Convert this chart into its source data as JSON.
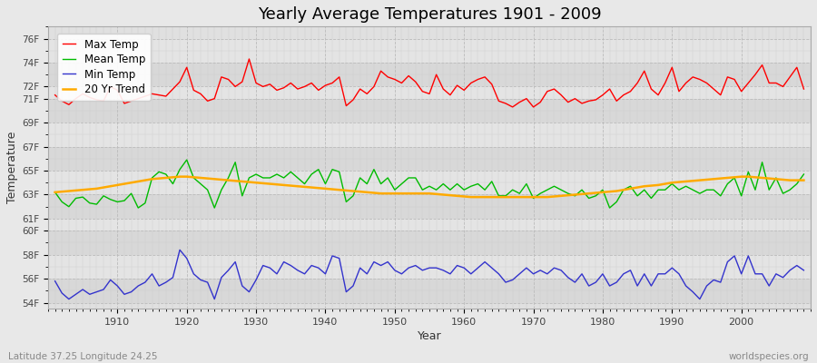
{
  "title": "Yearly Average Temperatures 1901 - 2009",
  "xlabel": "Year",
  "ylabel": "Temperature",
  "bottom_left": "Latitude 37.25 Longitude 24.25",
  "bottom_right": "worldspecies.org",
  "years_start": 1901,
  "years_end": 2009,
  "ylim": [
    53.5,
    77.0
  ],
  "xlim": [
    1900,
    2010
  ],
  "ytick_positions": [
    54,
    56,
    58,
    60,
    61,
    63,
    65,
    67,
    69,
    71,
    72,
    74,
    76
  ],
  "ytick_labels": [
    "54F",
    "56F",
    "58F",
    "60F",
    "61F",
    "63F",
    "65F",
    "67F",
    "69F",
    "71F",
    "72F",
    "74F",
    "76F"
  ],
  "xtick_positions": [
    1910,
    1920,
    1930,
    1940,
    1950,
    1960,
    1970,
    1980,
    1990,
    2000
  ],
  "background_color": "#e8e8e8",
  "plot_bg_color": "#e0e0e0",
  "band_colors": [
    "#d8d8d8",
    "#e4e4e4"
  ],
  "grid_color": "#cccccc",
  "grid_minor_color": "#d8d8d8",
  "line_colors": {
    "max": "#ff0000",
    "mean": "#00bb00",
    "min": "#3333cc",
    "trend": "#ffaa00"
  },
  "line_widths": {
    "max": 1.0,
    "mean": 1.0,
    "min": 1.0,
    "trend": 1.8
  },
  "legend_labels": [
    "Max Temp",
    "Mean Temp",
    "Min Temp",
    "20 Yr Trend"
  ],
  "max_temp": [
    71.3,
    70.8,
    70.5,
    71.0,
    71.4,
    71.1,
    70.9,
    70.8,
    72.0,
    71.7,
    70.6,
    70.8,
    71.0,
    71.2,
    71.4,
    71.3,
    71.2,
    71.8,
    72.4,
    73.6,
    71.7,
    71.4,
    70.8,
    71.0,
    72.8,
    72.6,
    72.0,
    72.4,
    74.3,
    72.3,
    72.0,
    72.2,
    71.7,
    71.9,
    72.3,
    71.8,
    72.0,
    72.3,
    71.7,
    72.1,
    72.3,
    72.8,
    70.4,
    70.9,
    71.8,
    71.4,
    72.0,
    73.3,
    72.8,
    72.6,
    72.3,
    72.9,
    72.4,
    71.6,
    71.4,
    73.0,
    71.8,
    71.3,
    72.1,
    71.7,
    72.3,
    72.6,
    72.8,
    72.2,
    70.8,
    70.6,
    70.3,
    70.7,
    71.0,
    70.3,
    70.7,
    71.6,
    71.8,
    71.3,
    70.7,
    71.0,
    70.6,
    70.8,
    70.9,
    71.3,
    71.8,
    70.8,
    71.3,
    71.6,
    72.3,
    73.3,
    71.8,
    71.3,
    72.3,
    73.6,
    71.6,
    72.3,
    72.8,
    72.6,
    72.3,
    71.8,
    71.3,
    72.8,
    72.6,
    71.6,
    72.3,
    73.0,
    73.8,
    72.3,
    72.3,
    72.0,
    72.8,
    73.6,
    71.8
  ],
  "mean_temp": [
    63.2,
    62.4,
    62.0,
    62.7,
    62.8,
    62.3,
    62.2,
    62.9,
    62.6,
    62.4,
    62.5,
    63.1,
    61.9,
    62.3,
    64.4,
    64.9,
    64.7,
    63.9,
    65.1,
    65.9,
    64.4,
    63.9,
    63.4,
    61.9,
    63.4,
    64.4,
    65.7,
    62.9,
    64.4,
    64.7,
    64.4,
    64.4,
    64.7,
    64.4,
    64.9,
    64.4,
    63.9,
    64.7,
    65.1,
    63.9,
    65.1,
    64.9,
    62.4,
    62.9,
    64.4,
    63.9,
    65.1,
    63.9,
    64.4,
    63.4,
    63.9,
    64.4,
    64.4,
    63.4,
    63.7,
    63.4,
    63.9,
    63.4,
    63.9,
    63.4,
    63.7,
    63.9,
    63.4,
    64.1,
    62.9,
    62.9,
    63.4,
    63.1,
    63.9,
    62.7,
    63.1,
    63.4,
    63.7,
    63.4,
    63.1,
    62.9,
    63.4,
    62.7,
    62.9,
    63.4,
    61.9,
    62.4,
    63.4,
    63.7,
    62.9,
    63.4,
    62.7,
    63.4,
    63.4,
    63.9,
    63.4,
    63.7,
    63.4,
    63.1,
    63.4,
    63.4,
    62.9,
    63.9,
    64.4,
    62.9,
    64.9,
    63.4,
    65.7,
    63.4,
    64.4,
    63.1,
    63.4,
    63.9,
    64.7
  ],
  "min_temp": [
    55.8,
    54.8,
    54.3,
    54.7,
    55.1,
    54.7,
    54.9,
    55.1,
    55.9,
    55.4,
    54.7,
    54.9,
    55.4,
    55.7,
    56.4,
    55.4,
    55.7,
    56.1,
    58.4,
    57.7,
    56.4,
    55.9,
    55.7,
    54.3,
    56.1,
    56.7,
    57.4,
    55.4,
    54.9,
    55.9,
    57.1,
    56.9,
    56.4,
    57.4,
    57.1,
    56.7,
    56.4,
    57.1,
    56.9,
    56.4,
    57.9,
    57.7,
    54.9,
    55.4,
    56.9,
    56.4,
    57.4,
    57.1,
    57.4,
    56.7,
    56.4,
    56.9,
    57.1,
    56.7,
    56.9,
    56.9,
    56.7,
    56.4,
    57.1,
    56.9,
    56.4,
    56.9,
    57.4,
    56.9,
    56.4,
    55.7,
    55.9,
    56.4,
    56.9,
    56.4,
    56.7,
    56.4,
    56.9,
    56.7,
    56.1,
    55.7,
    56.4,
    55.4,
    55.7,
    56.4,
    55.4,
    55.7,
    56.4,
    56.7,
    55.4,
    56.4,
    55.4,
    56.4,
    56.4,
    56.9,
    56.4,
    55.4,
    54.9,
    54.3,
    55.4,
    55.9,
    55.7,
    57.4,
    57.9,
    56.4,
    57.9,
    56.4,
    56.4,
    55.4,
    56.4,
    56.1,
    56.7,
    57.1,
    56.7
  ],
  "trend_temp": [
    63.2,
    63.25,
    63.3,
    63.35,
    63.4,
    63.45,
    63.5,
    63.6,
    63.7,
    63.8,
    63.9,
    64.0,
    64.1,
    64.2,
    64.3,
    64.35,
    64.4,
    64.45,
    64.5,
    64.5,
    64.45,
    64.4,
    64.35,
    64.3,
    64.25,
    64.2,
    64.15,
    64.1,
    64.05,
    64.0,
    63.95,
    63.9,
    63.85,
    63.8,
    63.75,
    63.7,
    63.65,
    63.6,
    63.55,
    63.5,
    63.45,
    63.4,
    63.35,
    63.3,
    63.25,
    63.2,
    63.15,
    63.1,
    63.1,
    63.1,
    63.1,
    63.1,
    63.1,
    63.1,
    63.1,
    63.05,
    63.0,
    62.95,
    62.9,
    62.85,
    62.8,
    62.8,
    62.8,
    62.8,
    62.8,
    62.8,
    62.8,
    62.8,
    62.8,
    62.8,
    62.8,
    62.8,
    62.85,
    62.9,
    62.95,
    63.0,
    63.05,
    63.1,
    63.15,
    63.2,
    63.25,
    63.3,
    63.4,
    63.5,
    63.6,
    63.7,
    63.75,
    63.8,
    63.9,
    64.0,
    64.05,
    64.1,
    64.15,
    64.2,
    64.25,
    64.3,
    64.35,
    64.4,
    64.45,
    64.5,
    64.5,
    64.45,
    64.4,
    64.35,
    64.3,
    64.25,
    64.2,
    64.2,
    64.2
  ]
}
